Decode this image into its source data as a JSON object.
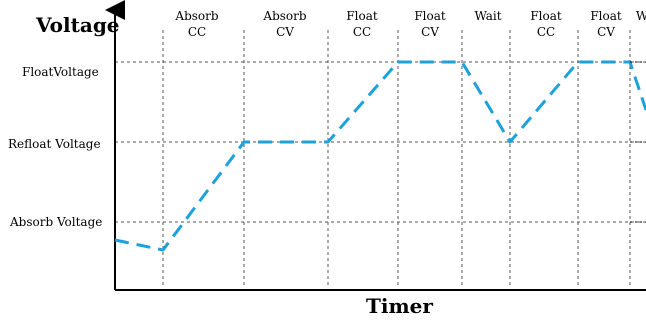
{
  "chart_data": {
    "type": "line",
    "ylabel": "Voltage",
    "xlabel": "Timer",
    "y_levels": [
      {
        "key": "float",
        "label": "FloatVoltage"
      },
      {
        "key": "refloat",
        "label": "Refloat Voltage"
      },
      {
        "key": "absorb",
        "label": "Absorb Voltage"
      }
    ],
    "phases": [
      {
        "line1": "Absorb",
        "line2": "CC"
      },
      {
        "line1": "Absorb",
        "line2": "CV"
      },
      {
        "line1": "Float",
        "line2": "CC"
      },
      {
        "line1": "Float",
        "line2": "CV"
      },
      {
        "line1": "Wait",
        "line2": ""
      },
      {
        "line1": "Float",
        "line2": "CC"
      },
      {
        "line1": "Float",
        "line2": "CV"
      },
      {
        "line1": "W",
        "line2": ""
      }
    ],
    "series": [
      {
        "color": "#1ba1dc",
        "points": [
          {
            "x": 0.0,
            "y": "absorb-"
          },
          {
            "x": 1.0,
            "y": "below-absorb"
          }
        ]
      }
    ]
  },
  "colors": {
    "line": "#1ba1dc",
    "grid": "#555555",
    "axis": "#000000"
  }
}
